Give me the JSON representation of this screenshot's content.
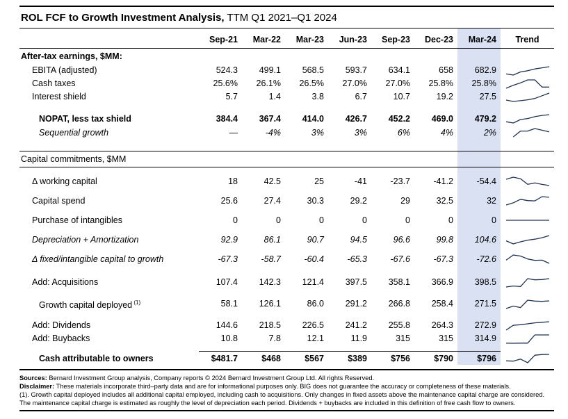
{
  "title": {
    "main": "ROL FCF to Growth Investment Analysis,",
    "suffix": " TTM Q1 2021–Q1 2024"
  },
  "colors": {
    "highlight": "#d9e1f2",
    "sparkline": "#1f3050"
  },
  "table": {
    "columns": [
      "Sep-21",
      "Mar-22",
      "Mar-23",
      "Jun-23",
      "Sep-23",
      "Dec-23",
      "Mar-24"
    ],
    "trend_label": "Trend",
    "highlight_column": "Mar-24",
    "rows": [
      {
        "label": "After-tax earnings, $MM:",
        "style": "section-bold",
        "indent": 0
      },
      {
        "label": "EBITA (adjusted)",
        "indent": 1,
        "values": [
          "524.3",
          "499.1",
          "568.5",
          "593.7",
          "634.1",
          "658",
          "682.9"
        ]
      },
      {
        "label": "Cash taxes",
        "indent": 1,
        "values": [
          "25.6%",
          "26.1%",
          "26.5%",
          "27.0%",
          "27.0%",
          "25.8%",
          "25.8%"
        ]
      },
      {
        "label": "Interest shield",
        "indent": 1,
        "values": [
          "5.7",
          "1.4",
          "3.8",
          "6.7",
          "10.7",
          "19.2",
          "27.5"
        ]
      },
      {
        "spacer": 12
      },
      {
        "label": "NOPAT, less tax shield",
        "style": "bold",
        "indent": 2,
        "values": [
          "384.4",
          "367.4",
          "414.0",
          "426.7",
          "452.2",
          "469.0",
          "479.2"
        ]
      },
      {
        "label": "Sequential growth",
        "style": "italic",
        "indent": 2,
        "values": [
          "—",
          "-4%",
          "3%",
          "3%",
          "6%",
          "4%",
          "2%"
        ]
      },
      {
        "spacer": 16
      },
      {
        "label": "Capital commitments, $MM",
        "style": "section",
        "rule": "tb",
        "indent": 0
      },
      {
        "spacer": 6
      },
      {
        "label": "Δ working capital",
        "indent": 1,
        "tall": true,
        "values": [
          "18",
          "42.5",
          "25",
          "-41",
          "-23.7",
          "-41.2",
          "-54.4"
        ]
      },
      {
        "label": "Capital spend",
        "indent": 1,
        "tall": true,
        "values": [
          "25.6",
          "27.4",
          "30.3",
          "29.2",
          "29",
          "32.5",
          "32"
        ]
      },
      {
        "label": "Purchase of intangibles",
        "indent": 1,
        "tall": true,
        "values": [
          "0",
          "0",
          "0",
          "0",
          "0",
          "0",
          "0"
        ]
      },
      {
        "label": "Depreciation + Amortization",
        "style": "italic",
        "indent": 1,
        "tall": true,
        "values": [
          "92.9",
          "86.1",
          "90.7",
          "94.5",
          "96.6",
          "99.8",
          "104.6"
        ]
      },
      {
        "label": "Δ fixed/intangible capital to growth",
        "style": "italic",
        "indent": 1,
        "tall": true,
        "values": [
          "-67.3",
          "-58.7",
          "-60.4",
          "-65.3",
          "-67.6",
          "-67.3",
          "-72.6"
        ]
      },
      {
        "spacer": 10
      },
      {
        "label": "Add: Acquisitions",
        "indent": 1,
        "values": [
          "107.4",
          "142.3",
          "121.4",
          "397.5",
          "358.1",
          "366.9",
          "398.5"
        ]
      },
      {
        "spacer": 12
      },
      {
        "label": "Growth capital deployed",
        "sup": "(1)",
        "indent": 2,
        "values": [
          "58.1",
          "126.1",
          "86.0",
          "291.2",
          "266.8",
          "258.4",
          "271.5"
        ]
      },
      {
        "spacer": 12
      },
      {
        "label": "Add: Dividends",
        "indent": 1,
        "values": [
          "144.6",
          "218.5",
          "226.5",
          "241.2",
          "255.8",
          "264.3",
          "272.9"
        ]
      },
      {
        "label": "Add: Buybacks",
        "indent": 1,
        "values": [
          "10.8",
          "7.8",
          "12.1",
          "11.9",
          "315",
          "315",
          "314.9"
        ]
      },
      {
        "spacer": 8
      },
      {
        "label": "Cash attributable to owners",
        "style": "bold",
        "indent": 2,
        "topline": true,
        "values": [
          "$481.7",
          "$468",
          "$567",
          "$389",
          "$756",
          "$790",
          "$796"
        ]
      }
    ]
  },
  "footer": {
    "sources_label": "Sources:",
    "sources_text": " Bernard Investment Group analysis, Company reports © 2024 Bernard Investment Group Ltd. All rights Reserved.",
    "disclaimer_label": "Disclaimer:",
    "disclaimer_text": " These materials incorporate third–party data and are for informational purposes only. BIG does not guarantee the accuracy or completeness of these materials.",
    "footnote": "(1). Growth capital deployed includes all additional capital employed, including cash to acquisitions. Only changes in fixed assets above the maintenance capital charge are considered. The maintenance capital charge is estimated as roughly the level of depreciation each period. Dividends + buybacks are included in this definition of free cash flow to owners."
  }
}
